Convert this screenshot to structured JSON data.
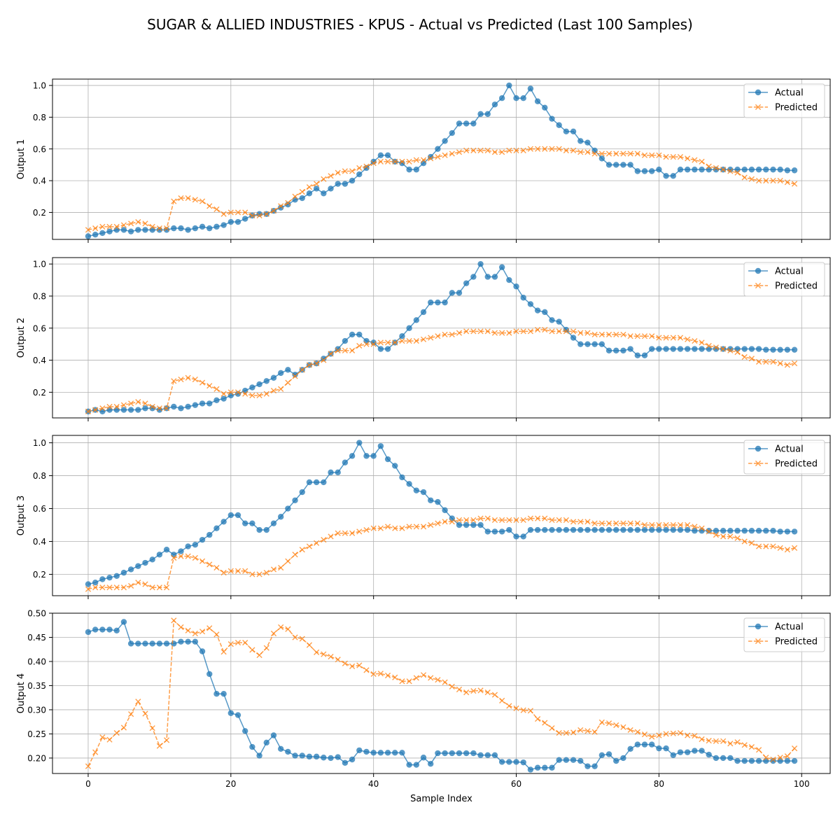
{
  "chart_data": {
    "type": "line",
    "title": "SUGAR & ALLIED INDUSTRIES - KPUS - Actual vs Predicted (Last 100 Samples)",
    "xlabel": "Sample Index",
    "xlim": [
      -5,
      104
    ],
    "xticks": [
      "0",
      "20",
      "40",
      "60",
      "80",
      "100"
    ],
    "grid": true,
    "legend_position": "upper right",
    "series_styles": [
      {
        "name": "Actual",
        "color": "#1f77b4",
        "marker": "circle",
        "linestyle": "solid"
      },
      {
        "name": "Predicted",
        "color": "#ff7f0e",
        "marker": "x",
        "linestyle": "dashed"
      }
    ],
    "panels": [
      {
        "ylabel": "Output 1",
        "ylim": [
          0.03,
          1.04
        ],
        "yticks": [
          "0.2",
          "0.4",
          "0.6",
          "0.8",
          "1.0"
        ],
        "series": [
          {
            "name": "Actual",
            "values": [
              0.05,
              0.06,
              0.07,
              0.08,
              0.09,
              0.09,
              0.08,
              0.09,
              0.09,
              0.09,
              0.09,
              0.09,
              0.1,
              0.1,
              0.09,
              0.1,
              0.11,
              0.1,
              0.11,
              0.12,
              0.14,
              0.14,
              0.16,
              0.18,
              0.19,
              0.19,
              0.21,
              0.23,
              0.25,
              0.28,
              0.29,
              0.32,
              0.35,
              0.32,
              0.35,
              0.38,
              0.38,
              0.4,
              0.44,
              0.48,
              0.52,
              0.56,
              0.56,
              0.52,
              0.51,
              0.47,
              0.47,
              0.51,
              0.55,
              0.6,
              0.65,
              0.7,
              0.76,
              0.76,
              0.76,
              0.82,
              0.82,
              0.88,
              0.92,
              1.0,
              0.92,
              0.92,
              0.98,
              0.9,
              0.86,
              0.79,
              0.75,
              0.71,
              0.71,
              0.65,
              0.64,
              0.59,
              0.54,
              0.5,
              0.5,
              0.5,
              0.5,
              0.46,
              0.46,
              0.46,
              0.47,
              0.43,
              0.43,
              0.47,
              0.47,
              0.47,
              0.47,
              0.47,
              0.47,
              0.47,
              0.47,
              0.47,
              0.47,
              0.47,
              0.47,
              0.47,
              0.47,
              0.47,
              0.465,
              0.465
            ]
          },
          {
            "name": "Predicted",
            "values": [
              0.09,
              0.1,
              0.11,
              0.11,
              0.11,
              0.12,
              0.13,
              0.14,
              0.13,
              0.11,
              0.1,
              0.1,
              0.27,
              0.29,
              0.29,
              0.28,
              0.27,
              0.24,
              0.22,
              0.19,
              0.2,
              0.2,
              0.2,
              0.18,
              0.18,
              0.19,
              0.21,
              0.24,
              0.26,
              0.3,
              0.33,
              0.36,
              0.38,
              0.41,
              0.43,
              0.45,
              0.46,
              0.46,
              0.48,
              0.49,
              0.51,
              0.52,
              0.52,
              0.52,
              0.52,
              0.52,
              0.53,
              0.53,
              0.54,
              0.55,
              0.56,
              0.57,
              0.58,
              0.59,
              0.59,
              0.59,
              0.59,
              0.58,
              0.58,
              0.59,
              0.59,
              0.59,
              0.6,
              0.6,
              0.6,
              0.6,
              0.6,
              0.59,
              0.59,
              0.58,
              0.58,
              0.57,
              0.57,
              0.57,
              0.57,
              0.57,
              0.57,
              0.57,
              0.56,
              0.56,
              0.56,
              0.55,
              0.55,
              0.55,
              0.54,
              0.53,
              0.52,
              0.49,
              0.48,
              0.47,
              0.46,
              0.45,
              0.42,
              0.41,
              0.4,
              0.4,
              0.4,
              0.4,
              0.39,
              0.38
            ]
          }
        ]
      },
      {
        "ylabel": "Output 2",
        "ylim": [
          0.04,
          1.04
        ],
        "yticks": [
          "0.2",
          "0.4",
          "0.6",
          "0.8",
          "1.0"
        ],
        "series": [
          {
            "name": "Actual",
            "values": [
              0.08,
              0.09,
              0.08,
              0.09,
              0.09,
              0.09,
              0.09,
              0.09,
              0.1,
              0.1,
              0.09,
              0.1,
              0.11,
              0.1,
              0.11,
              0.12,
              0.13,
              0.13,
              0.15,
              0.16,
              0.18,
              0.19,
              0.21,
              0.23,
              0.25,
              0.27,
              0.29,
              0.32,
              0.34,
              0.31,
              0.34,
              0.37,
              0.38,
              0.41,
              0.44,
              0.47,
              0.52,
              0.56,
              0.56,
              0.52,
              0.51,
              0.47,
              0.47,
              0.51,
              0.55,
              0.6,
              0.65,
              0.7,
              0.76,
              0.76,
              0.76,
              0.82,
              0.82,
              0.88,
              0.92,
              1.0,
              0.92,
              0.92,
              0.98,
              0.9,
              0.86,
              0.79,
              0.75,
              0.71,
              0.7,
              0.65,
              0.64,
              0.59,
              0.54,
              0.5,
              0.5,
              0.5,
              0.5,
              0.46,
              0.46,
              0.46,
              0.47,
              0.43,
              0.43,
              0.47,
              0.47,
              0.47,
              0.47,
              0.47,
              0.47,
              0.47,
              0.47,
              0.47,
              0.47,
              0.47,
              0.47,
              0.47,
              0.47,
              0.47,
              0.47,
              0.465,
              0.465,
              0.465,
              0.465,
              0.465
            ]
          },
          {
            "name": "Predicted",
            "values": [
              0.08,
              0.09,
              0.1,
              0.11,
              0.11,
              0.12,
              0.13,
              0.14,
              0.13,
              0.11,
              0.1,
              0.1,
              0.27,
              0.28,
              0.29,
              0.28,
              0.26,
              0.24,
              0.22,
              0.19,
              0.2,
              0.2,
              0.19,
              0.18,
              0.18,
              0.19,
              0.21,
              0.22,
              0.26,
              0.3,
              0.34,
              0.37,
              0.38,
              0.4,
              0.44,
              0.46,
              0.46,
              0.46,
              0.49,
              0.5,
              0.5,
              0.51,
              0.51,
              0.51,
              0.52,
              0.52,
              0.52,
              0.53,
              0.54,
              0.55,
              0.56,
              0.56,
              0.57,
              0.58,
              0.58,
              0.58,
              0.58,
              0.57,
              0.57,
              0.57,
              0.58,
              0.58,
              0.58,
              0.59,
              0.59,
              0.58,
              0.58,
              0.58,
              0.58,
              0.57,
              0.57,
              0.56,
              0.56,
              0.56,
              0.56,
              0.56,
              0.55,
              0.55,
              0.55,
              0.55,
              0.54,
              0.54,
              0.54,
              0.54,
              0.53,
              0.52,
              0.51,
              0.49,
              0.48,
              0.47,
              0.46,
              0.45,
              0.42,
              0.41,
              0.39,
              0.39,
              0.39,
              0.38,
              0.37,
              0.38
            ]
          }
        ]
      },
      {
        "ylabel": "Output 3",
        "ylim": [
          0.07,
          1.045
        ],
        "yticks": [
          "0.2",
          "0.4",
          "0.6",
          "0.8",
          "1.0"
        ],
        "series": [
          {
            "name": "Actual",
            "values": [
              0.14,
              0.15,
              0.17,
              0.18,
              0.19,
              0.21,
              0.23,
              0.25,
              0.27,
              0.29,
              0.32,
              0.35,
              0.32,
              0.34,
              0.37,
              0.38,
              0.41,
              0.44,
              0.48,
              0.52,
              0.56,
              0.56,
              0.51,
              0.51,
              0.47,
              0.47,
              0.51,
              0.55,
              0.6,
              0.65,
              0.7,
              0.76,
              0.76,
              0.76,
              0.82,
              0.82,
              0.88,
              0.92,
              1.0,
              0.92,
              0.92,
              0.98,
              0.9,
              0.86,
              0.79,
              0.75,
              0.71,
              0.7,
              0.65,
              0.64,
              0.59,
              0.54,
              0.5,
              0.5,
              0.5,
              0.5,
              0.46,
              0.46,
              0.46,
              0.47,
              0.43,
              0.43,
              0.47,
              0.47,
              0.47,
              0.47,
              0.47,
              0.47,
              0.47,
              0.47,
              0.47,
              0.47,
              0.47,
              0.47,
              0.47,
              0.47,
              0.47,
              0.47,
              0.47,
              0.47,
              0.47,
              0.47,
              0.47,
              0.47,
              0.47,
              0.465,
              0.465,
              0.465,
              0.465,
              0.465,
              0.465,
              0.465,
              0.465,
              0.465,
              0.465,
              0.465,
              0.465,
              0.46,
              0.46,
              0.46
            ]
          },
          {
            "name": "Predicted",
            "values": [
              0.11,
              0.12,
              0.12,
              0.12,
              0.12,
              0.12,
              0.13,
              0.15,
              0.14,
              0.12,
              0.12,
              0.12,
              0.3,
              0.31,
              0.31,
              0.3,
              0.28,
              0.26,
              0.24,
              0.21,
              0.22,
              0.22,
              0.22,
              0.2,
              0.2,
              0.21,
              0.23,
              0.24,
              0.28,
              0.32,
              0.35,
              0.37,
              0.39,
              0.41,
              0.43,
              0.45,
              0.45,
              0.45,
              0.46,
              0.47,
              0.48,
              0.48,
              0.49,
              0.48,
              0.48,
              0.49,
              0.49,
              0.49,
              0.5,
              0.51,
              0.52,
              0.52,
              0.53,
              0.53,
              0.53,
              0.54,
              0.54,
              0.53,
              0.53,
              0.53,
              0.53,
              0.53,
              0.54,
              0.54,
              0.54,
              0.53,
              0.53,
              0.53,
              0.52,
              0.52,
              0.52,
              0.51,
              0.51,
              0.51,
              0.51,
              0.51,
              0.51,
              0.51,
              0.5,
              0.5,
              0.5,
              0.5,
              0.5,
              0.5,
              0.5,
              0.49,
              0.48,
              0.46,
              0.44,
              0.43,
              0.43,
              0.42,
              0.4,
              0.39,
              0.37,
              0.37,
              0.37,
              0.36,
              0.35,
              0.36
            ]
          }
        ]
      },
      {
        "ylabel": "Output 4",
        "ylim": [
          0.168,
          0.5
        ],
        "yticks": [
          "0.20",
          "0.25",
          "0.30",
          "0.35",
          "0.40",
          "0.45",
          "0.50"
        ],
        "series": [
          {
            "name": "Actual",
            "values": [
              0.461,
              0.466,
              0.466,
              0.466,
              0.464,
              0.482,
              0.437,
              0.437,
              0.437,
              0.437,
              0.437,
              0.437,
              0.437,
              0.441,
              0.441,
              0.441,
              0.421,
              0.374,
              0.333,
              0.333,
              0.293,
              0.289,
              0.256,
              0.223,
              0.205,
              0.232,
              0.247,
              0.219,
              0.213,
              0.205,
              0.205,
              0.203,
              0.203,
              0.201,
              0.2,
              0.202,
              0.19,
              0.197,
              0.216,
              0.213,
              0.211,
              0.211,
              0.211,
              0.211,
              0.211,
              0.186,
              0.186,
              0.201,
              0.188,
              0.21,
              0.21,
              0.21,
              0.21,
              0.21,
              0.21,
              0.206,
              0.206,
              0.206,
              0.192,
              0.192,
              0.192,
              0.191,
              0.176,
              0.18,
              0.18,
              0.18,
              0.196,
              0.196,
              0.196,
              0.194,
              0.183,
              0.183,
              0.206,
              0.208,
              0.194,
              0.2,
              0.219,
              0.228,
              0.228,
              0.228,
              0.22,
              0.22,
              0.206,
              0.212,
              0.212,
              0.215,
              0.215,
              0.207,
              0.2,
              0.2,
              0.2,
              0.194,
              0.194,
              0.194,
              0.194,
              0.194,
              0.194,
              0.194,
              0.194,
              0.194
            ]
          },
          {
            "name": "Predicted",
            "values": [
              0.183,
              0.212,
              0.243,
              0.238,
              0.252,
              0.263,
              0.291,
              0.317,
              0.292,
              0.262,
              0.225,
              0.237,
              0.485,
              0.471,
              0.464,
              0.458,
              0.462,
              0.469,
              0.456,
              0.42,
              0.436,
              0.439,
              0.439,
              0.424,
              0.413,
              0.428,
              0.458,
              0.471,
              0.467,
              0.45,
              0.447,
              0.434,
              0.419,
              0.415,
              0.41,
              0.404,
              0.396,
              0.39,
              0.392,
              0.382,
              0.374,
              0.375,
              0.371,
              0.367,
              0.359,
              0.359,
              0.366,
              0.372,
              0.366,
              0.362,
              0.357,
              0.348,
              0.342,
              0.336,
              0.339,
              0.34,
              0.336,
              0.331,
              0.319,
              0.308,
              0.303,
              0.299,
              0.298,
              0.281,
              0.273,
              0.262,
              0.252,
              0.252,
              0.253,
              0.258,
              0.256,
              0.254,
              0.274,
              0.272,
              0.268,
              0.264,
              0.258,
              0.254,
              0.249,
              0.244,
              0.247,
              0.25,
              0.251,
              0.252,
              0.247,
              0.246,
              0.239,
              0.236,
              0.235,
              0.235,
              0.23,
              0.233,
              0.227,
              0.223,
              0.217,
              0.201,
              0.197,
              0.201,
              0.204,
              0.22
            ]
          }
        ]
      }
    ]
  }
}
